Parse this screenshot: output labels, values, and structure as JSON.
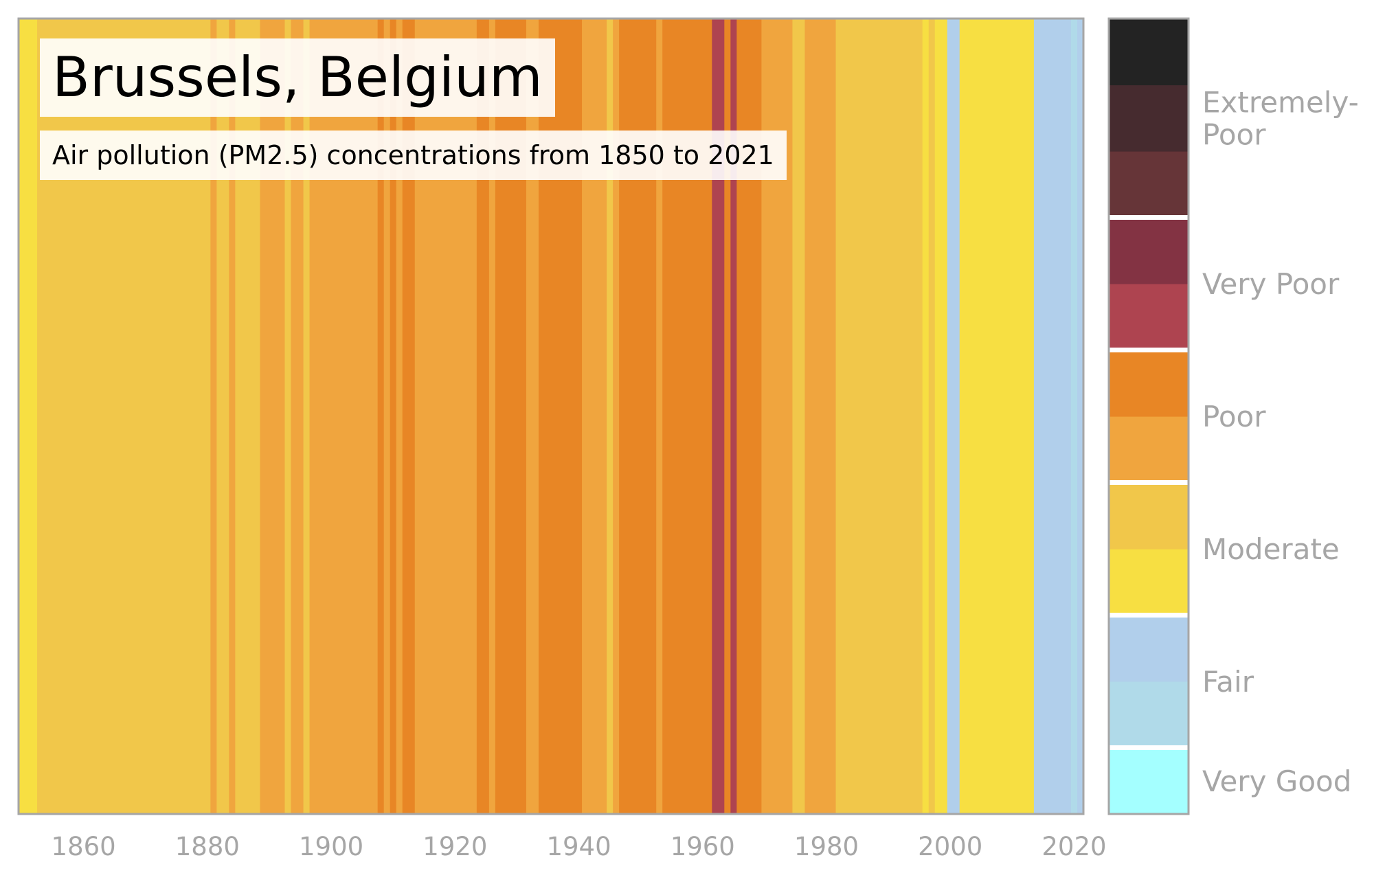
{
  "title": "Brussels, Belgium",
  "subtitle": "Air pollution (PM2.5) concentrations from 1850 to 2021",
  "colors": {
    "very_good": "#a4ffff",
    "fair_1": "#b0dae9",
    "fair_2": "#b1cfeb",
    "moderate_1": "#f7df42",
    "moderate_2": "#f1c74a",
    "poor_1": "#f0a53e",
    "poor_2": "#e88625",
    "very_poor_1": "#ae4450",
    "very_poor_2": "#833343",
    "extremely_poor_1": "#663538",
    "extremely_poor_2": "#462b2f",
    "extremely_poor_3": "#232323"
  },
  "chart_data": {
    "type": "heatmap",
    "title": "Brussels, Belgium",
    "subtitle": "Air pollution (PM2.5) concentrations from 1850 to 2021",
    "xlim": [
      1850,
      2022
    ],
    "x_ticks": [
      1860,
      1880,
      1900,
      1920,
      1940,
      1960,
      1980,
      2000,
      2020
    ],
    "grid": false,
    "legend_placement": "right",
    "stripes": [
      {
        "start": 1850,
        "end": 1853,
        "level": "moderate_1"
      },
      {
        "start": 1853,
        "end": 1881,
        "level": "moderate_2"
      },
      {
        "start": 1881,
        "end": 1882,
        "level": "poor_1"
      },
      {
        "start": 1882,
        "end": 1884,
        "level": "moderate_2"
      },
      {
        "start": 1884,
        "end": 1885,
        "level": "poor_1"
      },
      {
        "start": 1885,
        "end": 1889,
        "level": "moderate_2"
      },
      {
        "start": 1889,
        "end": 1893,
        "level": "poor_1"
      },
      {
        "start": 1893,
        "end": 1894,
        "level": "moderate_2"
      },
      {
        "start": 1894,
        "end": 1896,
        "level": "poor_1"
      },
      {
        "start": 1896,
        "end": 1897,
        "level": "moderate_2"
      },
      {
        "start": 1897,
        "end": 1908,
        "level": "poor_1"
      },
      {
        "start": 1908,
        "end": 1909,
        "level": "poor_2"
      },
      {
        "start": 1909,
        "end": 1910,
        "level": "poor_1"
      },
      {
        "start": 1910,
        "end": 1911,
        "level": "poor_2"
      },
      {
        "start": 1911,
        "end": 1912,
        "level": "poor_1"
      },
      {
        "start": 1912,
        "end": 1914,
        "level": "poor_2"
      },
      {
        "start": 1914,
        "end": 1924,
        "level": "poor_1"
      },
      {
        "start": 1924,
        "end": 1926,
        "level": "poor_2"
      },
      {
        "start": 1926,
        "end": 1927,
        "level": "poor_1"
      },
      {
        "start": 1927,
        "end": 1932,
        "level": "poor_2"
      },
      {
        "start": 1932,
        "end": 1934,
        "level": "poor_1"
      },
      {
        "start": 1934,
        "end": 1941,
        "level": "poor_2"
      },
      {
        "start": 1941,
        "end": 1945,
        "level": "poor_1"
      },
      {
        "start": 1945,
        "end": 1946,
        "level": "moderate_2"
      },
      {
        "start": 1946,
        "end": 1947,
        "level": "poor_1"
      },
      {
        "start": 1947,
        "end": 1953,
        "level": "poor_2"
      },
      {
        "start": 1953,
        "end": 1954,
        "level": "poor_1"
      },
      {
        "start": 1954,
        "end": 1962,
        "level": "poor_2"
      },
      {
        "start": 1962,
        "end": 1964,
        "level": "very_poor_1"
      },
      {
        "start": 1964,
        "end": 1965,
        "level": "poor_2"
      },
      {
        "start": 1965,
        "end": 1966,
        "level": "very_poor_1"
      },
      {
        "start": 1966,
        "end": 1970,
        "level": "poor_2"
      },
      {
        "start": 1970,
        "end": 1975,
        "level": "poor_1"
      },
      {
        "start": 1975,
        "end": 1977,
        "level": "moderate_2"
      },
      {
        "start": 1977,
        "end": 1982,
        "level": "poor_1"
      },
      {
        "start": 1982,
        "end": 1996,
        "level": "moderate_2"
      },
      {
        "start": 1996,
        "end": 1997,
        "level": "moderate_1"
      },
      {
        "start": 1997,
        "end": 1998,
        "level": "moderate_2"
      },
      {
        "start": 1998,
        "end": 2000,
        "level": "moderate_1"
      },
      {
        "start": 2000,
        "end": 2002,
        "level": "fair_2"
      },
      {
        "start": 2002,
        "end": 2014,
        "level": "moderate_1"
      },
      {
        "start": 2014,
        "end": 2020,
        "level": "fair_2"
      },
      {
        "start": 2020,
        "end": 2021,
        "level": "fair_1"
      },
      {
        "start": 2021,
        "end": 2022,
        "level": "fair_2"
      }
    ],
    "legend": {
      "categories": [
        {
          "label": "Very Good",
          "levels": [
            "very_good"
          ]
        },
        {
          "label": "Fair",
          "levels": [
            "fair_1",
            "fair_2"
          ]
        },
        {
          "label": "Moderate",
          "levels": [
            "moderate_1",
            "moderate_2"
          ]
        },
        {
          "label": "Poor",
          "levels": [
            "poor_1",
            "poor_2"
          ]
        },
        {
          "label": "Very Poor",
          "levels": [
            "very_poor_1",
            "very_poor_2"
          ]
        },
        {
          "label": "Extremely-\nPoor",
          "levels": [
            "extremely_poor_1",
            "extremely_poor_2",
            "extremely_poor_3"
          ]
        }
      ]
    }
  }
}
